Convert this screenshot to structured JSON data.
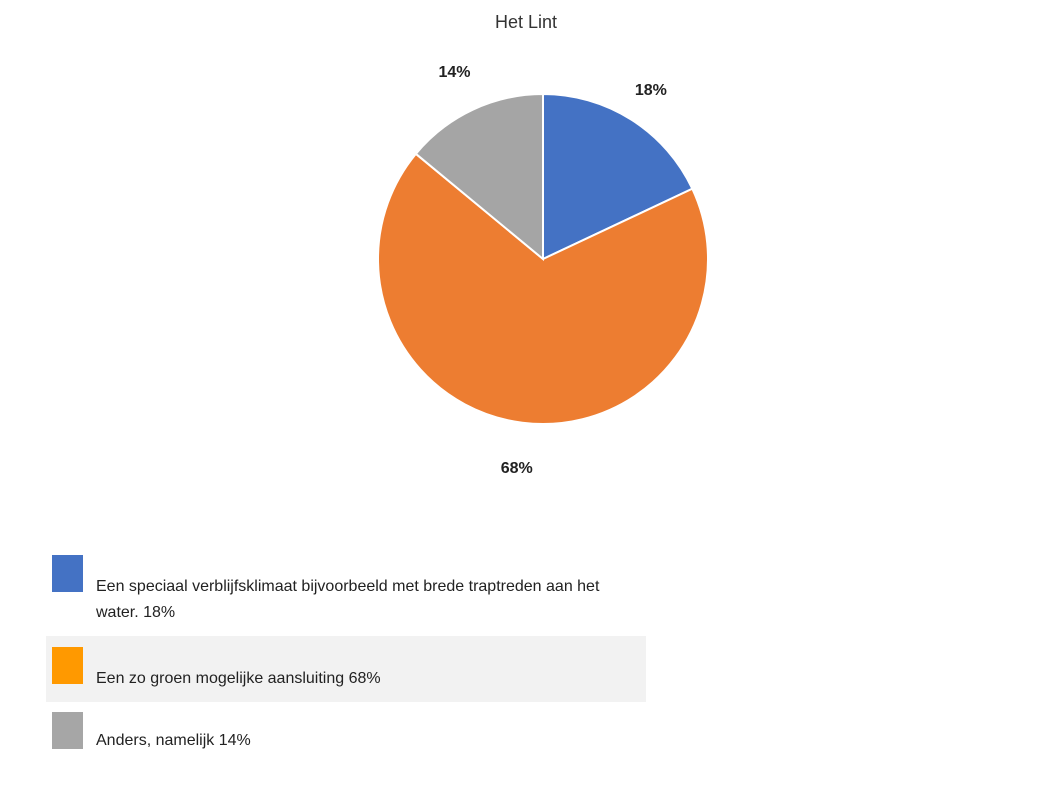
{
  "chart_data": {
    "type": "pie",
    "title": "Het Lint",
    "slices": [
      {
        "label": "Een speciaal verblijfsklimaat bijvoorbeeld met brede traptreden aan het water. 18%",
        "value": 18,
        "data_label": "18%",
        "color": "#4472c4",
        "legend_color": "#4472c4"
      },
      {
        "label": "Een zo groen mogelijke aansluiting 68%",
        "value": 68,
        "data_label": "68%",
        "color": "#ed7d31",
        "legend_color": "#ff9900"
      },
      {
        "label": "Anders, namelijk 14%",
        "value": 14,
        "data_label": "14%",
        "color": "#a5a5a5",
        "legend_color": "#a6a6a6"
      }
    ],
    "start": "12 o'clock, clockwise",
    "legend_position": "bottom-left"
  }
}
